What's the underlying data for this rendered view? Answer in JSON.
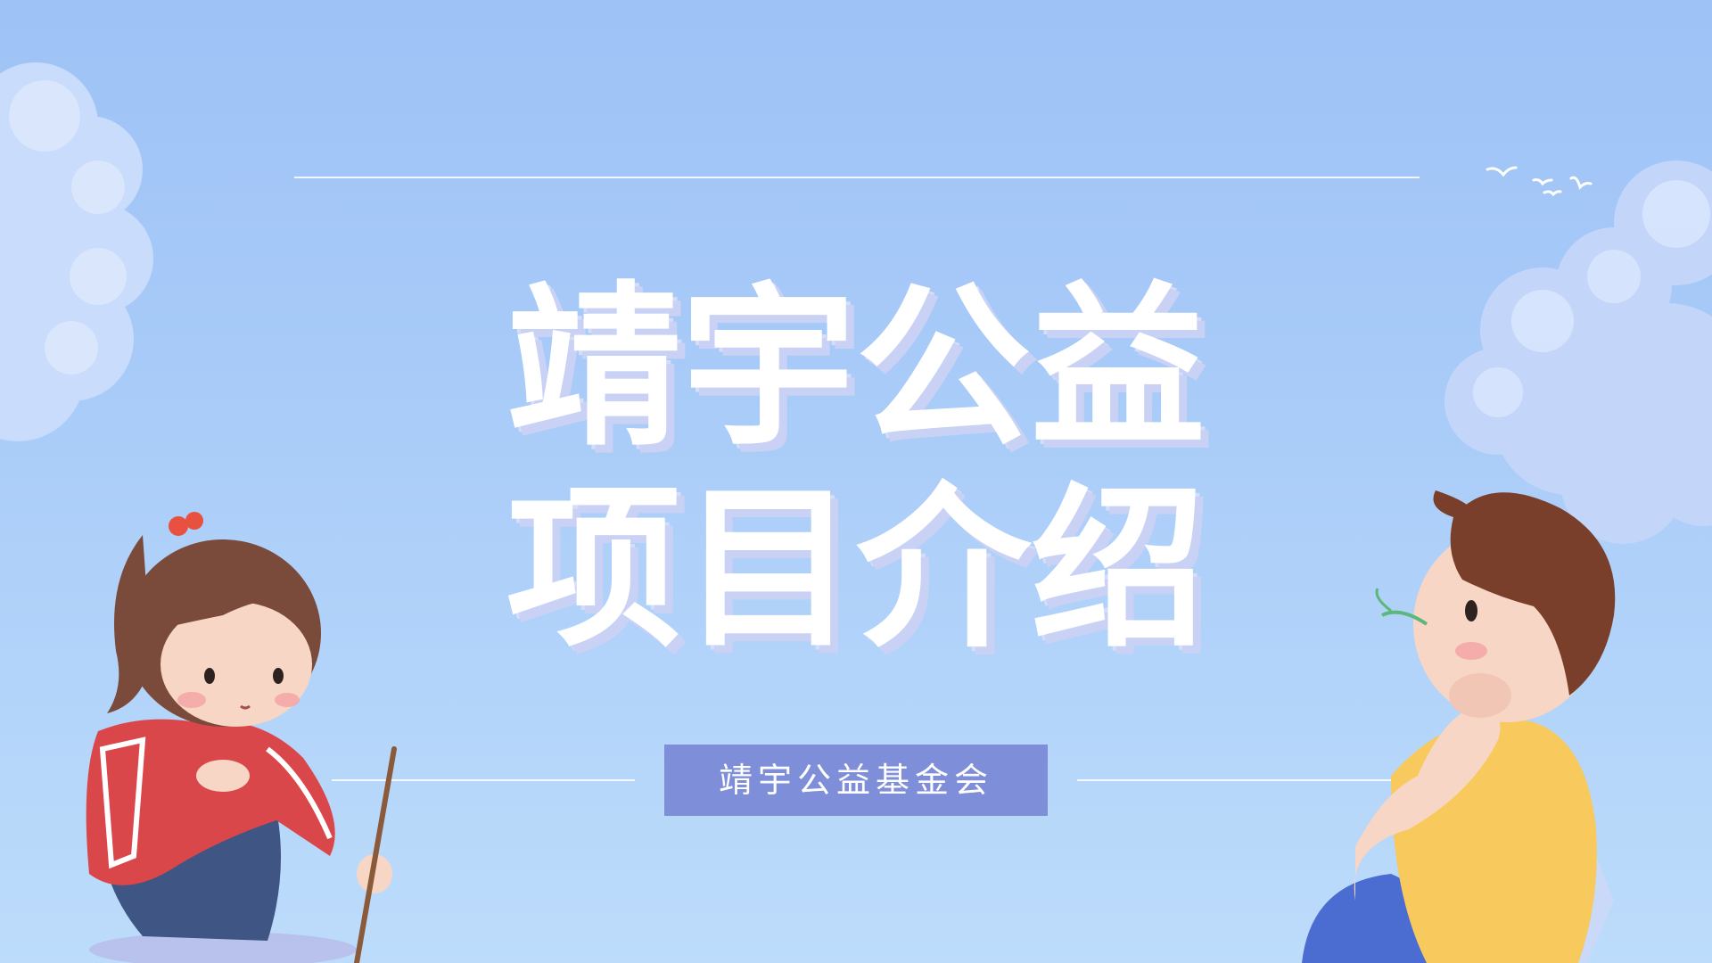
{
  "title": {
    "line1": "靖宇公益",
    "line2": "项目介绍"
  },
  "badge": {
    "label": "靖宇公益基金会"
  },
  "colors": {
    "background_top": "#9ec2f6",
    "background_bottom": "#bddcfb",
    "badge": "#7f8ed9",
    "title_text": "#ffffff",
    "title_shadow": "#c9d2f5"
  },
  "decorations": {
    "left_cloud": "cloud-illustration",
    "right_cloud": "cloud-illustration",
    "birds": "birds-illustration",
    "girl": "girl-crouching-illustration",
    "boy": "boy-sitting-illustration"
  }
}
